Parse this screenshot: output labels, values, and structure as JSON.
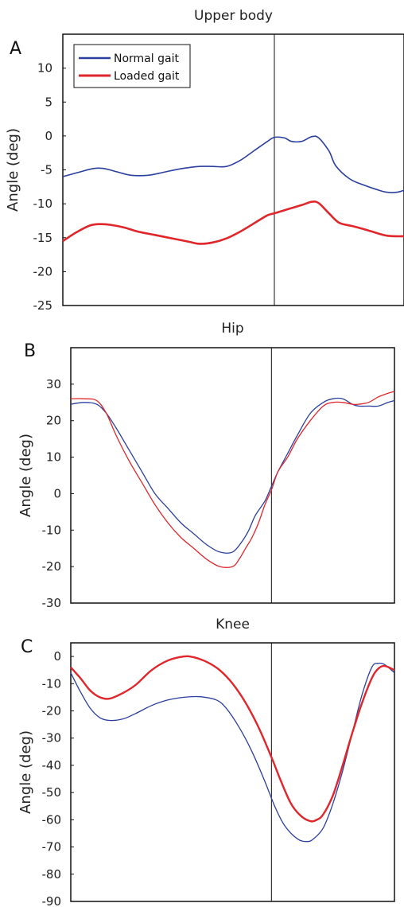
{
  "chart_data": [
    {
      "type": "line",
      "panel": "A",
      "title": "Upper body",
      "xlabel": "",
      "ylabel": "Angle (deg)",
      "ylim": [
        -25,
        15
      ],
      "yticks": [
        10,
        5,
        0,
        -5,
        -10,
        -15,
        -20,
        -25
      ],
      "xlim": [
        0,
        100
      ],
      "vline": 62,
      "legend": {
        "position": "top-left",
        "entries": [
          "Normal gait",
          "Loaded gait"
        ]
      },
      "series": [
        {
          "name": "Normal gait",
          "color": "#2a3f9f",
          "width": 1.6,
          "x": [
            0,
            5,
            9,
            12,
            16,
            20,
            25,
            30,
            35,
            40,
            44,
            48,
            52,
            56,
            60,
            62,
            65,
            67,
            70,
            73,
            75,
            78,
            80,
            84,
            88,
            92,
            95,
            98,
            100
          ],
          "y": [
            -6,
            -5.3,
            -4.8,
            -4.8,
            -5.3,
            -5.8,
            -5.8,
            -5.3,
            -4.8,
            -4.5,
            -4.5,
            -4.5,
            -3.6,
            -2.2,
            -0.8,
            -0.2,
            -0.3,
            -0.8,
            -0.8,
            -0.1,
            -0.3,
            -2.2,
            -4.4,
            -6.3,
            -7.2,
            -7.9,
            -8.3,
            -8.3,
            -8.0
          ]
        },
        {
          "name": "Loaded gait",
          "color": "#e0262b",
          "width": 2.6,
          "x": [
            0,
            4,
            8,
            11,
            14,
            18,
            22,
            27,
            32,
            37,
            40,
            44,
            48,
            52,
            56,
            60,
            62,
            66,
            70,
            73,
            75,
            78,
            81,
            85,
            90,
            95,
            100
          ],
          "y": [
            -15.5,
            -14.2,
            -13.2,
            -13.0,
            -13.1,
            -13.5,
            -14.1,
            -14.6,
            -15.1,
            -15.6,
            -15.9,
            -15.7,
            -15.1,
            -14.1,
            -12.9,
            -11.7,
            -11.4,
            -10.8,
            -10.2,
            -9.7,
            -9.9,
            -11.4,
            -12.8,
            -13.3,
            -14.0,
            -14.7,
            -14.8
          ]
        }
      ]
    },
    {
      "type": "line",
      "panel": "B",
      "title": "Hip",
      "xlabel": "",
      "ylabel": "Angle (deg)",
      "ylim": [
        -30,
        40
      ],
      "yticks": [
        30,
        20,
        10,
        0,
        -10,
        -20,
        -30
      ],
      "xlim": [
        0,
        100
      ],
      "vline": 62,
      "series": [
        {
          "name": "Normal gait",
          "color": "#2a3f9f",
          "width": 1.3,
          "x": [
            0,
            4,
            8,
            11,
            14,
            18,
            22,
            26,
            30,
            34,
            38,
            42,
            46,
            50,
            53,
            55,
            57,
            60,
            62,
            64,
            67,
            70,
            74,
            78,
            81,
            84,
            87,
            89,
            92,
            95,
            98,
            100
          ],
          "y": [
            24.5,
            25,
            24.5,
            22,
            18,
            12,
            6,
            0,
            -4,
            -8,
            -11,
            -14,
            -16,
            -16,
            -13,
            -10,
            -6,
            -2,
            2,
            6,
            11,
            16,
            22,
            25,
            26,
            26,
            24.5,
            24,
            24,
            24,
            25,
            25.5
          ]
        },
        {
          "name": "Loaded gait",
          "color": "#e0262b",
          "width": 1.3,
          "x": [
            0,
            4,
            8,
            11,
            14,
            18,
            22,
            26,
            30,
            34,
            38,
            42,
            46,
            50,
            52,
            54,
            56,
            58,
            60,
            62,
            64,
            67,
            70,
            74,
            78,
            81,
            84,
            87,
            89,
            92,
            95,
            98,
            100
          ],
          "y": [
            26,
            26,
            25.5,
            22,
            16,
            9,
            3,
            -3,
            -8,
            -12,
            -15,
            -18,
            -20,
            -20,
            -18,
            -15,
            -12,
            -8,
            -3,
            1,
            6,
            10,
            15,
            20,
            24,
            25,
            25,
            24.5,
            24.5,
            25,
            26.5,
            27.5,
            28
          ]
        }
      ]
    },
    {
      "type": "line",
      "panel": "C",
      "title": "Knee",
      "xlabel": "",
      "ylabel": "Angle (deg)",
      "ylim": [
        -90,
        5
      ],
      "yticks": [
        0,
        -10,
        -20,
        -30,
        -40,
        -50,
        -60,
        -70,
        -80,
        -90
      ],
      "xlim": [
        0,
        100
      ],
      "vline": 62,
      "series": [
        {
          "name": "Normal gait",
          "color": "#2a3f9f",
          "width": 1.3,
          "x": [
            0,
            3,
            6,
            9,
            12,
            16,
            20,
            25,
            30,
            35,
            40,
            45,
            48,
            52,
            56,
            60,
            63,
            66,
            70,
            73,
            75,
            78,
            81,
            84,
            87,
            90,
            93,
            95,
            97,
            100
          ],
          "y": [
            -6,
            -13,
            -19,
            -22.5,
            -23.5,
            -23,
            -21,
            -18,
            -16,
            -15,
            -14.8,
            -16,
            -19,
            -26,
            -35,
            -46,
            -55,
            -62,
            -67,
            -68,
            -67,
            -63,
            -54,
            -42,
            -28,
            -14,
            -4,
            -2.5,
            -3,
            -6
          ]
        },
        {
          "name": "Loaded gait",
          "color": "#e0262b",
          "width": 2.4,
          "x": [
            0,
            3,
            6,
            9,
            12,
            16,
            20,
            25,
            30,
            35,
            38,
            42,
            46,
            50,
            54,
            58,
            62,
            65,
            68,
            71,
            74,
            76,
            78,
            81,
            84,
            87,
            90,
            93,
            95,
            97,
            100
          ],
          "y": [
            -4,
            -8,
            -12.5,
            -15,
            -15.5,
            -13.5,
            -10.5,
            -5,
            -1.5,
            0,
            -0.3,
            -2,
            -5,
            -10,
            -17,
            -26,
            -37,
            -46,
            -54,
            -58.5,
            -60.5,
            -60,
            -58,
            -51,
            -40,
            -28,
            -17,
            -8,
            -4.5,
            -3.5,
            -5
          ]
        }
      ]
    }
  ]
}
